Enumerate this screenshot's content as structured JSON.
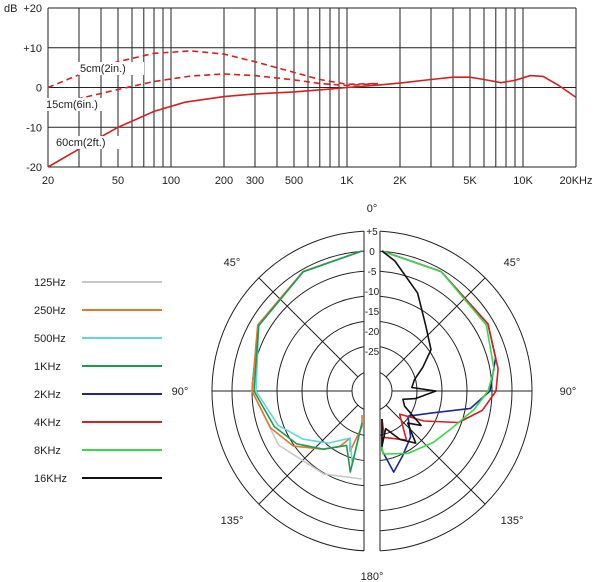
{
  "chart_data": [
    {
      "type": "line",
      "xscale": "log",
      "xlim": [
        20,
        20000
      ],
      "ylim": [
        -20,
        20
      ],
      "ylabel": "dB",
      "y_ticks": [
        "+20",
        "+10",
        "0",
        "-10",
        "-20"
      ],
      "x_tick_labels": [
        "20",
        "50",
        "100",
        "200",
        "300",
        "500",
        "1K",
        "2K",
        "5K",
        "10K",
        "20KHz"
      ],
      "x_tick_values": [
        20,
        50,
        100,
        200,
        300,
        500,
        1000,
        2000,
        5000,
        10000,
        20000
      ],
      "grid": true,
      "series": [
        {
          "name": "5cm(2in.)",
          "style": "dashed",
          "color": "#d42020",
          "points": [
            [
              20,
              0.0
            ],
            [
              30,
              3.2
            ],
            [
              50,
              6.5
            ],
            [
              80,
              8.6
            ],
            [
              130,
              9.2
            ],
            [
              200,
              8.4
            ],
            [
              300,
              6.5
            ],
            [
              500,
              3.8
            ],
            [
              700,
              2.0
            ],
            [
              1000,
              0.8
            ],
            [
              1500,
              1.0
            ]
          ]
        },
        {
          "name": "15cm(6in.)",
          "style": "dashed",
          "color": "#d42020",
          "points": [
            [
              20,
              -5.2
            ],
            [
              30,
              -2.8
            ],
            [
              50,
              -0.5
            ],
            [
              80,
              1.5
            ],
            [
              130,
              2.9
            ],
            [
              200,
              3.4
            ],
            [
              300,
              3.0
            ],
            [
              500,
              1.9
            ],
            [
              700,
              1.0
            ],
            [
              1000,
              0.5
            ],
            [
              1500,
              1.0
            ]
          ]
        },
        {
          "name": "60cm(2ft.)",
          "style": "solid",
          "color": "#d42020",
          "points": [
            [
              20,
              -20.0
            ],
            [
              30,
              -15.5
            ],
            [
              50,
              -10.0
            ],
            [
              80,
              -6.0
            ],
            [
              120,
              -3.7
            ],
            [
              200,
              -2.3
            ],
            [
              300,
              -1.6
            ],
            [
              500,
              -1.1
            ],
            [
              800,
              -0.4
            ],
            [
              1000,
              0.0
            ],
            [
              1500,
              0.6
            ],
            [
              2000,
              1.1
            ],
            [
              3000,
              2.0
            ],
            [
              4000,
              2.6
            ],
            [
              5000,
              2.6
            ],
            [
              6000,
              2.0
            ],
            [
              7500,
              1.2
            ],
            [
              9000,
              1.8
            ],
            [
              11000,
              3.0
            ],
            [
              13000,
              2.8
            ],
            [
              16000,
              0.5
            ],
            [
              20000,
              -2.5
            ]
          ]
        }
      ]
    },
    {
      "type": "polar",
      "title": "0°",
      "angle_labels": [
        "0°",
        "45°",
        "45°",
        "90°",
        "90°",
        "135°",
        "135°",
        "180°"
      ],
      "radial_ticks": [
        "+5",
        "0",
        "-5",
        "-10",
        "-15",
        "-20",
        "-25"
      ],
      "radial_range": [
        -30,
        5
      ],
      "legend_placement": "left",
      "series": [
        {
          "name": "125Hz",
          "color": "#c8c8c8",
          "side": "left",
          "angles": [
            0,
            30,
            60,
            90,
            120,
            150,
            180
          ],
          "values": [
            0,
            -0.6,
            -2.2,
            -5,
            -8,
            -11,
            -13
          ]
        },
        {
          "name": "250Hz",
          "color": "#e07a2a",
          "side": "left",
          "angles": [
            0,
            30,
            60,
            90,
            110,
            125,
            140,
            150,
            155,
            160,
            172,
            180
          ],
          "values": [
            0,
            -0.5,
            -2,
            -5,
            -8,
            -11,
            -16,
            -19,
            -22,
            -19,
            -26,
            -29
          ]
        },
        {
          "name": "500Hz",
          "color": "#5ed6e0",
          "side": "left",
          "angles": [
            0,
            30,
            60,
            90,
            110,
            125,
            140,
            155,
            165,
            175
          ],
          "values": [
            0,
            -0.6,
            -2.3,
            -6,
            -10,
            -14,
            -18,
            -22,
            -16,
            -27
          ]
        },
        {
          "name": "1KHz",
          "color": "#1f9a4e",
          "side": "left",
          "angles": [
            0,
            30,
            60,
            90,
            110,
            125,
            140,
            155,
            165,
            175
          ],
          "values": [
            0,
            -0.6,
            -2.3,
            -5.5,
            -9,
            -12,
            -16,
            -20,
            -14,
            -27
          ]
        },
        {
          "name": "2KHz",
          "color": "#1c2a8c",
          "side": "right",
          "angles": [
            0,
            30,
            60,
            75,
            90,
            100,
            110,
            125,
            140,
            155,
            165,
            172,
            180
          ],
          "values": [
            0,
            -0.5,
            -1.5,
            -3,
            -5.5,
            -10,
            -19,
            -24,
            -20,
            -17,
            -14,
            -20,
            -28
          ]
        },
        {
          "name": "4KHz",
          "color": "#d42020",
          "side": "right",
          "angles": [
            0,
            30,
            60,
            80,
            90,
            100,
            110,
            120,
            130,
            145,
            165,
            180
          ],
          "values": [
            0,
            -0.5,
            -1.5,
            -3,
            -4,
            -7,
            -12,
            -20,
            -26,
            -20,
            -23,
            -28
          ]
        },
        {
          "name": "8KHz",
          "color": "#3ad84a",
          "side": "right",
          "angles": [
            0,
            30,
            60,
            80,
            90,
            100,
            115,
            130,
            150,
            170,
            180
          ],
          "values": [
            0,
            -0.5,
            -2,
            -4,
            -6,
            -9,
            -13,
            -15,
            -17,
            -19,
            -21
          ]
        },
        {
          "name": "16KHz",
          "color": "#111111",
          "side": "right",
          "angles": [
            0,
            10,
            25,
            40,
            55,
            65,
            75,
            85,
            90,
            95,
            100,
            105,
            115,
            125,
            132,
            140,
            150,
            160,
            170,
            180
          ],
          "values": [
            0,
            -2,
            -8,
            -14,
            -17,
            -21,
            -24,
            -25,
            -19,
            -22,
            -24,
            -27,
            -26,
            -20,
            -23,
            -18,
            -21,
            -25,
            -21,
            -28
          ]
        }
      ]
    }
  ]
}
